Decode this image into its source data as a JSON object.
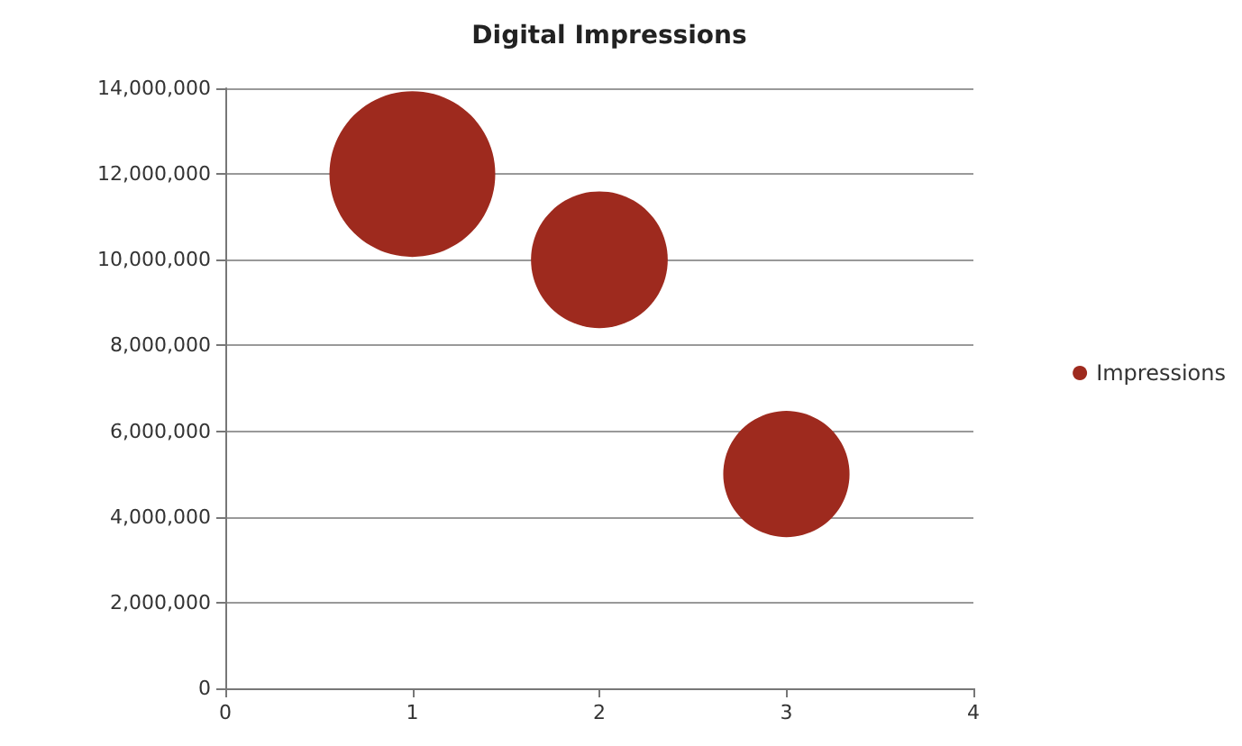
{
  "chart_data": {
    "type": "bubble",
    "title": "Digital Impressions",
    "x": [
      1,
      2,
      3
    ],
    "series": [
      {
        "name": "Impressions",
        "color": "#9e2a1e",
        "values": [
          12000000,
          10000000,
          5000000
        ],
        "sizes": [
          1,
          0.68,
          0.58
        ]
      }
    ],
    "xlim": [
      0,
      4
    ],
    "xticks": [
      0,
      1,
      2,
      3,
      4
    ],
    "ylim": [
      0,
      14000000
    ],
    "yticks": [
      0,
      {
        "value": 2000000,
        "label": "2,000,000"
      },
      {
        "value": 4000000,
        "label": "4,000,000"
      },
      {
        "value": 6000000,
        "label": "6,000,000"
      },
      {
        "value": 8000000,
        "label": "8,000,000"
      },
      {
        "value": 10000000,
        "label": "10,000,000"
      },
      {
        "value": 12000000,
        "label": "12,000,000"
      },
      {
        "value": 14000000,
        "label": "14,000,000"
      }
    ],
    "grid": "y",
    "legend": "right",
    "marker": "circle"
  }
}
